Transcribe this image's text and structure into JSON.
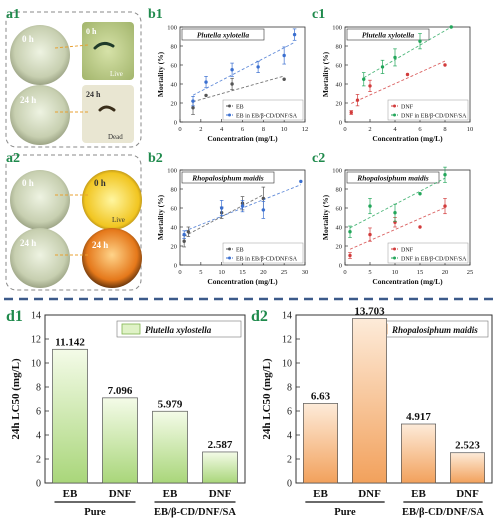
{
  "panels": {
    "a1": {
      "label": "a1",
      "tag_0h": "0 h",
      "tag_24h": "24 h",
      "live": "Live",
      "dead": "Dead"
    },
    "a2": {
      "label": "a2",
      "tag_0h": "0 h",
      "tag_24h": "24 h",
      "live": "Live"
    }
  },
  "colors": {
    "eb": "#555555",
    "dnf": "#d23b3b",
    "enc": "#3a6fd0",
    "enc2": "#22a65a",
    "bar_green_top": "#f2fbe4",
    "bar_green_bottom": "#a9d67a",
    "bar_orange_top": "#fde9d7",
    "bar_orange_bottom": "#f3a765",
    "divider": "#3c5a8a"
  },
  "chart_data": [
    {
      "id": "b1",
      "type": "scatter",
      "title": "Plutella xylotella",
      "xlabel": "Concentration (mg/L)",
      "ylabel": "Mortality (%)",
      "xlim": [
        0,
        12
      ],
      "ylim": [
        0,
        100
      ],
      "xticks": [
        "0",
        "2",
        "4",
        "6",
        "8",
        "10",
        "12"
      ],
      "yticks": [
        "0",
        "20",
        "40",
        "60",
        "80",
        "100"
      ],
      "series": [
        {
          "name": "EB",
          "color": "#555555",
          "x": [
            1.25,
            2.5,
            5,
            10
          ],
          "y": [
            15,
            28,
            40,
            45
          ],
          "err": [
            7,
            0,
            6,
            0
          ]
        },
        {
          "name": "EB in EB/β-CD/DNF/SA",
          "color": "#3a6fd0",
          "x": [
            1.25,
            2.5,
            5,
            7.5,
            10,
            11
          ],
          "y": [
            22,
            42,
            55,
            58,
            70,
            92
          ],
          "err": [
            5,
            6,
            7,
            6,
            9,
            6
          ]
        }
      ]
    },
    {
      "id": "c1",
      "type": "scatter",
      "title": "Plutella xylotella",
      "xlabel": "Concentration (mg/L)",
      "ylabel": "Mortality (%)",
      "xlim": [
        0,
        10
      ],
      "ylim": [
        0,
        100
      ],
      "xticks": [
        "0",
        "2",
        "4",
        "6",
        "8",
        "10"
      ],
      "yticks": [
        "0",
        "20",
        "40",
        "60",
        "80",
        "100"
      ],
      "series": [
        {
          "name": "DNF",
          "color": "#d23b3b",
          "x": [
            0.5,
            1,
            2,
            5,
            8
          ],
          "y": [
            10,
            23,
            38,
            50,
            60
          ],
          "err": [
            2,
            6,
            6,
            0,
            0
          ]
        },
        {
          "name": "DNF in EB/β-CD/DNF/SA",
          "color": "#22a65a",
          "x": [
            1.5,
            3,
            4,
            6,
            8.5
          ],
          "y": [
            45,
            58,
            68,
            85,
            100
          ],
          "err": [
            7,
            7,
            9,
            8,
            0
          ]
        }
      ]
    },
    {
      "id": "b2",
      "type": "scatter",
      "title": "Rhopalosiphum maidis",
      "xlabel": "Concentration (mg/L)",
      "ylabel": "Mortality (%)",
      "xlim": [
        0,
        30
      ],
      "ylim": [
        0,
        100
      ],
      "xticks": [
        "0",
        "5",
        "10",
        "15",
        "20",
        "25",
        "30"
      ],
      "yticks": [
        "0",
        "20",
        "40",
        "60",
        "80",
        "100"
      ],
      "series": [
        {
          "name": "EB",
          "color": "#555555",
          "x": [
            1,
            2,
            10,
            15,
            20
          ],
          "y": [
            25,
            35,
            55,
            65,
            70
          ],
          "err": [
            6,
            5,
            6,
            7,
            12
          ]
        },
        {
          "name": "EB in EB/β-CD/DNF/SA",
          "color": "#3a6fd0",
          "x": [
            1,
            10,
            15,
            20,
            29
          ],
          "y": [
            32,
            60,
            62,
            58,
            88
          ],
          "err": [
            4,
            8,
            6,
            9,
            0
          ]
        }
      ]
    },
    {
      "id": "c2",
      "type": "scatter",
      "title": "Rhopalosiphum maidis",
      "xlabel": "Concentration (mg/L)",
      "ylabel": "Mortality (%)",
      "xlim": [
        0,
        25
      ],
      "ylim": [
        0,
        100
      ],
      "xticks": [
        "0",
        "5",
        "10",
        "15",
        "20",
        "25"
      ],
      "yticks": [
        "0",
        "20",
        "40",
        "60",
        "80",
        "100"
      ],
      "series": [
        {
          "name": "DNF",
          "color": "#d23b3b",
          "x": [
            1,
            5,
            10,
            15,
            20
          ],
          "y": [
            10,
            32,
            45,
            40,
            62
          ],
          "err": [
            3,
            7,
            5,
            0,
            8
          ]
        },
        {
          "name": "DNF in EB/β-CD/DNF/SA",
          "color": "#22a65a",
          "x": [
            1,
            5,
            10,
            15,
            20
          ],
          "y": [
            35,
            62,
            55,
            75,
            95
          ],
          "err": [
            6,
            8,
            9,
            0,
            8
          ]
        }
      ]
    },
    {
      "id": "d1",
      "type": "bar",
      "legend": "Plutella xylostella",
      "ylabel": "24h LC50 (mg/L)",
      "ylim": [
        0,
        14
      ],
      "yticks": [
        "0",
        "2",
        "4",
        "6",
        "8",
        "10",
        "12",
        "14"
      ],
      "categories": [
        "EB",
        "DNF",
        "EB",
        "DNF"
      ],
      "groups": [
        "Pure",
        "EB/β-CD/DNF/SA"
      ],
      "values": [
        11.142,
        7.096,
        5.979,
        2.587
      ],
      "value_labels": [
        "11.142",
        "7.096",
        "5.979",
        "2.587"
      ]
    },
    {
      "id": "d2",
      "type": "bar",
      "legend": "Rhopalosiphum maidis",
      "ylabel": "24h LC50 (mg/L)",
      "ylim": [
        0,
        14
      ],
      "yticks": [
        "0",
        "2",
        "4",
        "6",
        "8",
        "10",
        "12",
        "14"
      ],
      "categories": [
        "EB",
        "DNF",
        "EB",
        "DNF"
      ],
      "groups": [
        "Pure",
        "EB/β-CD/DNF/SA"
      ],
      "values": [
        6.63,
        13.703,
        4.917,
        2.523
      ],
      "value_labels": [
        "6.63",
        "13.703",
        "4.917",
        "2.523"
      ]
    }
  ]
}
